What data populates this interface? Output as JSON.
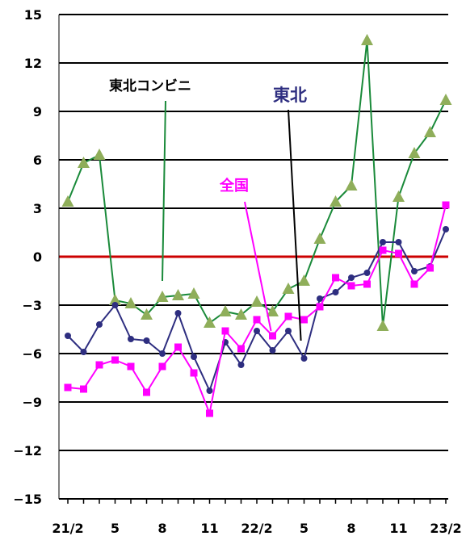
{
  "chart_data": {
    "type": "line",
    "ylim": [
      -15,
      15
    ],
    "yticks": [
      15,
      12,
      9,
      6,
      3,
      0,
      -3,
      -6,
      -9,
      -12,
      -15
    ],
    "x_tick_labels": [
      {
        "index": 0,
        "label": "21/2"
      },
      {
        "index": 3,
        "label": "5"
      },
      {
        "index": 6,
        "label": "8"
      },
      {
        "index": 9,
        "label": "11"
      },
      {
        "index": 12,
        "label": "22/2"
      },
      {
        "index": 15,
        "label": "5"
      },
      {
        "index": 18,
        "label": "8"
      },
      {
        "index": 21,
        "label": "11"
      },
      {
        "index": 24,
        "label": "23/2"
      }
    ],
    "zero_line_color": "#cc0000",
    "grid": true,
    "series": [
      {
        "name": "東北コンビニ",
        "color": "#1a8a3a",
        "marker_color": "#8fae5a",
        "marker": "triangle",
        "values": [
          3.4,
          5.8,
          6.3,
          -2.7,
          -2.9,
          -3.6,
          -2.5,
          -2.4,
          -2.3,
          -4.1,
          -3.4,
          -3.6,
          -2.8,
          -3.4,
          -2.0,
          -1.5,
          1.1,
          3.4,
          4.4,
          13.4,
          -4.3,
          3.7,
          6.4,
          7.7,
          9.7
        ]
      },
      {
        "name": "東北",
        "color": "#2e2e80",
        "marker_color": "#2e2e80",
        "marker": "circle",
        "values": [
          -4.9,
          -5.9,
          -4.2,
          -3.0,
          -5.1,
          -5.2,
          -6.0,
          -3.5,
          -6.2,
          -8.3,
          -5.3,
          -6.7,
          -4.6,
          -5.8,
          -4.6,
          -6.3,
          -2.6,
          -2.2,
          -1.3,
          -1.0,
          0.9,
          0.9,
          -0.9,
          -0.6,
          1.7
        ]
      },
      {
        "name": "全国",
        "color": "#ff00ff",
        "marker_color": "#ff00ff",
        "marker": "square",
        "values": [
          -8.1,
          -8.2,
          -6.7,
          -6.4,
          -6.8,
          -8.4,
          -6.8,
          -5.6,
          -7.2,
          -9.7,
          -4.6,
          -5.7,
          -3.9,
          -4.9,
          -3.7,
          -3.9,
          -3.1,
          -1.3,
          -1.8,
          -1.7,
          0.4,
          0.2,
          -1.7,
          -0.7,
          3.2
        ]
      }
    ],
    "annotations": [
      {
        "text": "東北コンビニ",
        "series": "東北コンビニ",
        "color": "#000000",
        "at": [
          8.5,
          2
        ],
        "anchor_point": [
          6,
          -1.5
        ]
      },
      {
        "text": "東北",
        "series": "東北",
        "color": "#2e2e80",
        "at": [
          13.5,
          10
        ],
        "anchor_point": [
          14.8,
          -5.2
        ]
      },
      {
        "text": "全国",
        "series": "全国",
        "color": "#ff00ff",
        "at": [
          11.0,
          5
        ],
        "anchor_point": [
          12.9,
          -4.6
        ]
      }
    ]
  }
}
